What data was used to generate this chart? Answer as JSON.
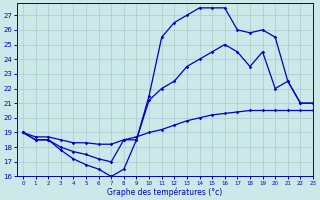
{
  "title": "Graphe des températures (°c)",
  "xlim": [
    -0.5,
    23
  ],
  "ylim": [
    16,
    27.8
  ],
  "yticks": [
    16,
    17,
    18,
    19,
    20,
    21,
    22,
    23,
    24,
    25,
    26,
    27
  ],
  "xticks": [
    0,
    1,
    2,
    3,
    4,
    5,
    6,
    7,
    8,
    9,
    10,
    11,
    12,
    13,
    14,
    15,
    16,
    17,
    18,
    19,
    20,
    21,
    22,
    23
  ],
  "bg_color": "#cce8e8",
  "line_color": "#0000cc",
  "grid_color": "#a8cccc",
  "line1_x": [
    0,
    1,
    2,
    3,
    4,
    5,
    6,
    7,
    8,
    9,
    10,
    11,
    12,
    13,
    14,
    15,
    16,
    17,
    18,
    19,
    20,
    21,
    22,
    23
  ],
  "line1_y": [
    19.0,
    18.7,
    18.7,
    18.5,
    18.3,
    18.3,
    18.2,
    18.2,
    18.5,
    18.7,
    19.0,
    19.2,
    19.5,
    19.8,
    20.0,
    20.2,
    20.3,
    20.4,
    20.5,
    20.5,
    20.5,
    20.5,
    20.5,
    20.5
  ],
  "line2_x": [
    0,
    1,
    2,
    3,
    4,
    5,
    6,
    7,
    8,
    9,
    10,
    11,
    12,
    13,
    14,
    15,
    16,
    17,
    18,
    19,
    20,
    21,
    22,
    23
  ],
  "line2_y": [
    19.0,
    18.5,
    18.5,
    18.0,
    17.7,
    17.5,
    17.2,
    17.0,
    18.5,
    18.5,
    21.2,
    22.0,
    22.5,
    23.5,
    24.0,
    24.5,
    25.0,
    24.5,
    23.5,
    24.5,
    22.0,
    22.5,
    21.0,
    21.0
  ],
  "line3_x": [
    0,
    1,
    2,
    3,
    4,
    5,
    6,
    7,
    8,
    9,
    10,
    11,
    12,
    13,
    14,
    15,
    16,
    17,
    18,
    19,
    20,
    21,
    22,
    23
  ],
  "line3_y": [
    19.0,
    18.5,
    18.5,
    17.8,
    17.2,
    16.8,
    16.5,
    16.0,
    16.5,
    18.5,
    21.5,
    25.5,
    26.5,
    27.0,
    27.5,
    27.5,
    27.5,
    26.0,
    25.8,
    26.0,
    25.5,
    22.5,
    21.0,
    21.0
  ]
}
